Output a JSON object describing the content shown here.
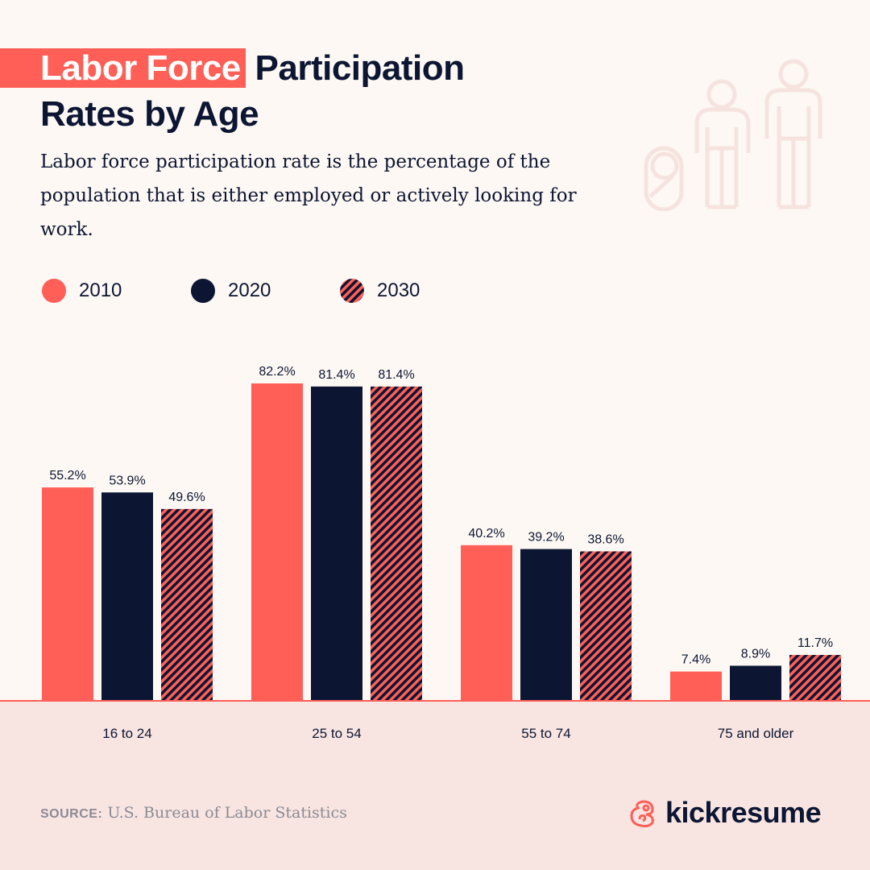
{
  "header": {
    "title_highlight": "Labor Force",
    "title_rest": " Participation",
    "title_line2": "Rates by Age",
    "subtitle": "Labor force participation rate is the percentage of the population that is either employed or actively looking for work."
  },
  "footer": {
    "source_label": "SOURCE:",
    "source_text": " U.S. Bureau of Labor Statistics",
    "brand": "kickresume"
  },
  "colors": {
    "2010": "#ff5f57",
    "2020": "#0c1633",
    "2030": "hatched #ff5f57/#0c1633",
    "background": "#fdf8f3",
    "band": "#f8e5e1"
  },
  "decorations": [
    "baby-icon",
    "child-icon",
    "adult-icon"
  ],
  "chart_data": {
    "type": "bar",
    "title": "",
    "xlabel": "",
    "ylabel": "",
    "ylim": [
      0,
      82.2
    ],
    "grid": false,
    "legend_placement": "top-left",
    "categories": [
      "16 to 24",
      "25 to 54",
      "55 to 74",
      "75 and older"
    ],
    "series": [
      {
        "name": "2010",
        "values": [
          55.2,
          82.2,
          40.2,
          7.4
        ],
        "labels": [
          "55.2%",
          "82.2%",
          "40.2%",
          "7.4%"
        ]
      },
      {
        "name": "2020",
        "values": [
          53.9,
          81.4,
          39.2,
          8.9
        ],
        "labels": [
          "53.9%",
          "81.4%",
          "39.2%",
          "8.9%"
        ]
      },
      {
        "name": "2030",
        "values": [
          49.6,
          81.4,
          38.6,
          11.7
        ],
        "labels": [
          "49.6%",
          "81.4%",
          "38.6%",
          "11.7%"
        ]
      }
    ]
  }
}
